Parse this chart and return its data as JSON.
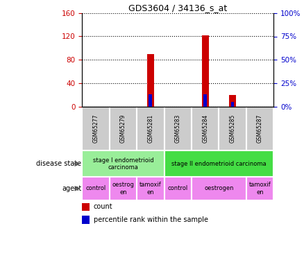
{
  "title": "GDS3604 / 34136_s_at",
  "samples": [
    "GSM65277",
    "GSM65279",
    "GSM65281",
    "GSM65283",
    "GSM65284",
    "GSM65285",
    "GSM65287"
  ],
  "count_values": [
    0,
    0,
    90,
    0,
    122,
    20,
    0
  ],
  "percentile_values": [
    0,
    0,
    13,
    0,
    13,
    5,
    0
  ],
  "ylim_left": [
    0,
    160
  ],
  "ylim_right": [
    0,
    100
  ],
  "yticks_left": [
    0,
    40,
    80,
    120,
    160
  ],
  "yticks_right": [
    0,
    25,
    50,
    75,
    100
  ],
  "ytick_labels_right": [
    "0%",
    "25%",
    "50%",
    "75%",
    "100%"
  ],
  "left_tick_color": "#cc0000",
  "right_tick_color": "#0000cc",
  "count_color": "#cc0000",
  "percentile_color": "#0000cc",
  "disease_state_groups": [
    {
      "label": "stage I endometrioid\ncarcinoma",
      "start": 0,
      "end": 3,
      "color": "#99ee99"
    },
    {
      "label": "stage II endometrioid carcinoma",
      "start": 3,
      "end": 7,
      "color": "#44dd44"
    }
  ],
  "agent_groups": [
    {
      "label": "control",
      "start": 0,
      "end": 1,
      "color": "#ee88ee"
    },
    {
      "label": "oestrog\nen",
      "start": 1,
      "end": 2,
      "color": "#ee88ee"
    },
    {
      "label": "tamoxif\nen",
      "start": 2,
      "end": 3,
      "color": "#ee88ee"
    },
    {
      "label": "control",
      "start": 3,
      "end": 4,
      "color": "#ee88ee"
    },
    {
      "label": "oestrogen",
      "start": 4,
      "end": 6,
      "color": "#ee88ee"
    },
    {
      "label": "tamoxif\nen",
      "start": 6,
      "end": 7,
      "color": "#ee88ee"
    }
  ],
  "sample_bg_color": "#cccccc",
  "disease_label": "disease state",
  "agent_label": "agent",
  "legend_count": "count",
  "legend_pct": "percentile rank within the sample"
}
